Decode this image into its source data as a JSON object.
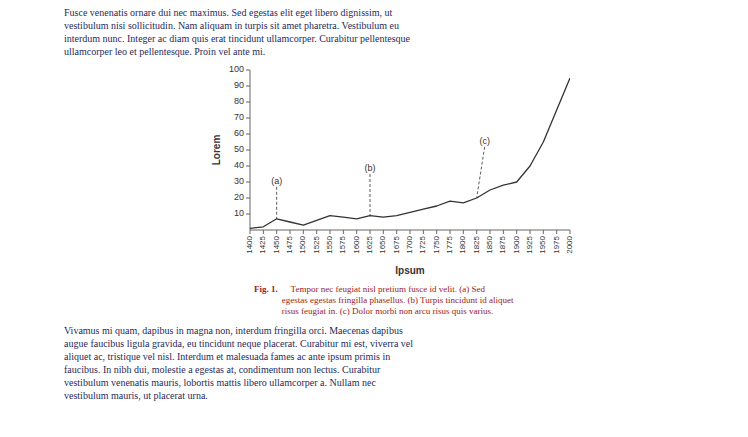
{
  "chart_data": {
    "type": "line",
    "x": [
      1400,
      1425,
      1450,
      1475,
      1500,
      1525,
      1550,
      1575,
      1600,
      1625,
      1650,
      1675,
      1700,
      1725,
      1750,
      1775,
      1800,
      1825,
      1850,
      1875,
      1900,
      1925,
      1950,
      1975,
      2000
    ],
    "values": [
      1,
      2,
      7,
      5,
      3,
      6,
      9,
      8,
      7,
      9,
      8,
      9,
      11,
      13,
      15,
      18,
      17,
      20,
      25,
      28,
      30,
      40,
      55,
      75,
      95
    ],
    "color": "#333333",
    "xlabel": "Ipsum",
    "ylabel": "Lorem",
    "xlim": [
      1400,
      2000
    ],
    "ylim": [
      0,
      100
    ],
    "xticks": [
      1400,
      1425,
      1450,
      1475,
      1500,
      1525,
      1550,
      1575,
      1600,
      1625,
      1650,
      1675,
      1700,
      1725,
      1750,
      1775,
      1800,
      1825,
      1850,
      1875,
      1900,
      1925,
      1950,
      1975,
      2000
    ],
    "yticks": [
      10,
      20,
      30,
      40,
      50,
      60,
      70,
      80,
      90,
      100
    ],
    "grid": false,
    "annotations": [
      {
        "text": "(a)",
        "x": 1450,
        "y": 7,
        "tx": 1450,
        "ty": 27
      },
      {
        "text": "(b)",
        "x": 1625,
        "y": 9,
        "tx": 1625,
        "ty": 35
      },
      {
        "text": "(c)",
        "x": 1825,
        "y": 20,
        "tx": 1840,
        "ty": 52
      }
    ]
  },
  "page_text": {
    "above": [
      "Fusce venenatis ornare dui nec maximus. Sed egestas elit eget libero dignissim, ut",
      "vestibulum nisi sollicitudin. Nam aliquam in turpis sit amet pharetra. Vestibulum eu",
      "interdum nunc. Integer ac diam quis erat tincidunt ullamcorper. Curabitur pellentesque",
      "ullamcorper leo et pellentesque. Proin vel ante mi."
    ],
    "caption_label": "Fig. 1.",
    "caption": [
      "    Tempor nec feugiat nisl pretium fusce id velit. (a) Sed",
      "egestas egestas fringilla phasellus. (b) Turpis tincidunt id aliquet",
      "risus feugiat in. (c) Dolor morbi non arcu risus quis varius."
    ],
    "below": [
      "Vivamus mi quam, dapibus in magna non, interdum fringilla orci. Maecenas dapibus",
      "augue faucibus ligula gravida, eu tincidunt neque placerat. Curabitur mi est, viverra vel",
      "aliquet ac, tristique vel nisl. Interdum et malesuada fames ac ante ipsum primis in",
      "faucibus. In nibh dui, molestie a egestas at, condimentum non lectus. Curabitur",
      "vestibulum venenatis mauris, lobortis mattis libero ullamcorper a. Nullam nec",
      "vestibulum mauris, ut placerat urna."
    ]
  }
}
